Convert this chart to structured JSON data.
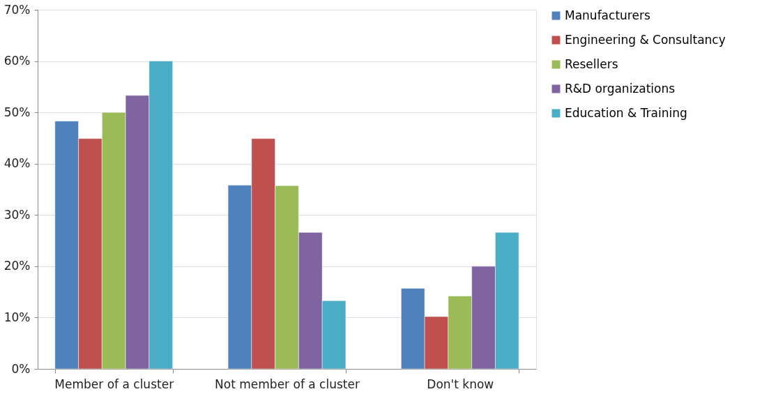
{
  "chart_data": {
    "type": "bar",
    "categories": [
      "Member of a cluster",
      "Not member of a cluster",
      "Don't know"
    ],
    "series": [
      {
        "name": "Manufacturers",
        "color": "#4f81bd",
        "values": [
          48.3,
          35.8,
          15.7
        ]
      },
      {
        "name": "Engineering & Consultancy",
        "color": "#c0504d",
        "values": [
          44.9,
          44.9,
          10.2
        ]
      },
      {
        "name": "Resellers",
        "color": "#9bbb59",
        "values": [
          50.0,
          35.7,
          14.2
        ]
      },
      {
        "name": "R&D organizations",
        "color": "#8064a2",
        "values": [
          53.3,
          26.6,
          20.0
        ]
      },
      {
        "name": "Education & Training",
        "color": "#4bacc6",
        "values": [
          60.0,
          13.3,
          26.6
        ]
      }
    ],
    "ylim": [
      0,
      70
    ],
    "yticks": [
      {
        "value": 0,
        "label": "0%"
      },
      {
        "value": 10,
        "label": "10%"
      },
      {
        "value": 20,
        "label": "20%"
      },
      {
        "value": 30,
        "label": "30%"
      },
      {
        "value": 40,
        "label": "40%"
      },
      {
        "value": 50,
        "label": "50%"
      },
      {
        "value": 60,
        "label": "60%"
      },
      {
        "value": 70,
        "label": "70%"
      }
    ],
    "grid": "y",
    "legend": "right"
  }
}
